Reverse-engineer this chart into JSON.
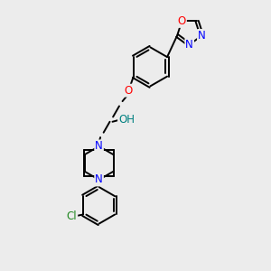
{
  "bg_color": "#ececec",
  "C_color": "#000000",
  "N_color": "#0000ff",
  "O_color": "#ff0000",
  "Cl_color": "#228822",
  "OH_color": "#008080",
  "lw": 1.4,
  "fs": 8.5,
  "figsize": [
    3.0,
    3.0
  ],
  "dpi": 100,
  "xlim": [
    0,
    10
  ],
  "ylim": [
    0,
    10
  ]
}
